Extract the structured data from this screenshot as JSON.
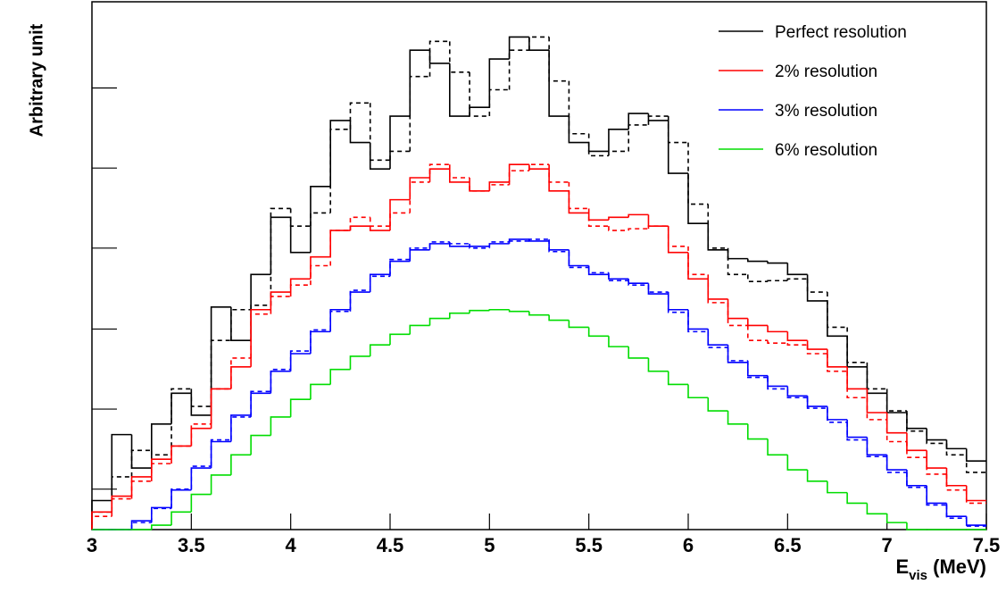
{
  "chart_data": {
    "type": "histogram",
    "ylabel": "Arbitrary unit",
    "xlabel_parts": [
      "E",
      "vis",
      " (MeV)"
    ],
    "bins": [
      3.0,
      3.1,
      3.2,
      3.3,
      3.4,
      3.5,
      3.6,
      3.7,
      3.8,
      3.9,
      4.0,
      4.1,
      4.2,
      4.3,
      4.4,
      4.5,
      4.6,
      4.7,
      4.8,
      4.9,
      5.0,
      5.1,
      5.2,
      5.3,
      5.4,
      5.5,
      5.6,
      5.7,
      5.8,
      5.9,
      6.0,
      6.1,
      6.2,
      6.3,
      6.4,
      6.5,
      6.6,
      6.7,
      6.8,
      6.9,
      7.0,
      7.1,
      7.2,
      7.3,
      7.4,
      7.5
    ],
    "xlim": [
      3,
      7.5
    ],
    "xticks": [
      3,
      3.5,
      4,
      4.5,
      5,
      5.5,
      6,
      6.5,
      7,
      7.5
    ],
    "ylim": [
      0,
      600
    ],
    "yticks": [
      46,
      137,
      228,
      320,
      411,
      502
    ],
    "legend": "upper right",
    "series": [
      {
        "name": "Perfect resolution",
        "color": "#000000",
        "values": [
          33,
          108,
          70,
          120,
          155,
          130,
          253,
          215,
          290,
          355,
          315,
          390,
          465,
          440,
          410,
          470,
          545,
          530,
          470,
          480,
          535,
          560,
          545,
          470,
          440,
          430,
          455,
          473,
          465,
          405,
          348,
          318,
          308,
          305,
          303,
          290,
          260,
          220,
          185,
          155,
          133,
          115,
          102,
          92,
          78
        ]
      },
      {
        "color": "#000000",
        "dash": true,
        "values": [
          20,
          60,
          90,
          85,
          160,
          140,
          215,
          250,
          255,
          365,
          345,
          360,
          455,
          485,
          420,
          430,
          515,
          555,
          520,
          470,
          500,
          545,
          560,
          510,
          450,
          425,
          430,
          460,
          470,
          440,
          370,
          320,
          290,
          282,
          283,
          285,
          270,
          230,
          190,
          160,
          135,
          112,
          98,
          85,
          65
        ]
      },
      {
        "name": "2% resolution",
        "color": "#ff0000",
        "values": [
          20,
          38,
          60,
          80,
          95,
          115,
          160,
          185,
          250,
          270,
          285,
          310,
          340,
          345,
          340,
          375,
          400,
          410,
          395,
          385,
          395,
          415,
          410,
          385,
          360,
          352,
          355,
          358,
          345,
          315,
          285,
          262,
          240,
          232,
          225,
          215,
          205,
          185,
          160,
          133,
          110,
          90,
          70,
          50,
          33
        ]
      },
      {
        "color": "#ff0000",
        "dash": true,
        "values": [
          15,
          35,
          55,
          75,
          95,
          120,
          160,
          195,
          245,
          265,
          278,
          300,
          340,
          355,
          345,
          360,
          395,
          415,
          400,
          385,
          392,
          408,
          415,
          395,
          365,
          345,
          340,
          342,
          345,
          322,
          290,
          258,
          232,
          215,
          212,
          210,
          200,
          180,
          150,
          125,
          100,
          82,
          63,
          45,
          30
        ]
      },
      {
        "name": "3% resolution",
        "color": "#0000ff",
        "values": [
          0,
          0,
          10,
          25,
          45,
          70,
          100,
          130,
          155,
          180,
          200,
          225,
          250,
          270,
          290,
          305,
          318,
          325,
          322,
          322,
          325,
          330,
          328,
          318,
          300,
          290,
          285,
          280,
          268,
          250,
          228,
          210,
          190,
          175,
          163,
          152,
          140,
          125,
          105,
          85,
          68,
          50,
          30,
          15,
          5
        ]
      },
      {
        "color": "#0000ff",
        "dash": true,
        "values": [
          0,
          0,
          8,
          24,
          46,
          72,
          102,
          128,
          157,
          182,
          203,
          227,
          248,
          272,
          288,
          307,
          320,
          327,
          325,
          320,
          327,
          328,
          330,
          316,
          298,
          292,
          283,
          278,
          270,
          247,
          225,
          207,
          192,
          173,
          160,
          150,
          138,
          122,
          102,
          83,
          65,
          48,
          28,
          13,
          4
        ]
      },
      {
        "name": "6% resolution",
        "color": "#00dd00",
        "values": [
          0,
          0,
          0,
          5,
          20,
          40,
          62,
          85,
          107,
          128,
          148,
          165,
          182,
          197,
          210,
          222,
          232,
          240,
          246,
          249,
          250,
          248,
          244,
          238,
          230,
          220,
          208,
          195,
          180,
          165,
          150,
          135,
          120,
          103,
          85,
          68,
          55,
          42,
          30,
          18,
          8,
          0,
          0,
          0,
          0
        ]
      }
    ]
  }
}
